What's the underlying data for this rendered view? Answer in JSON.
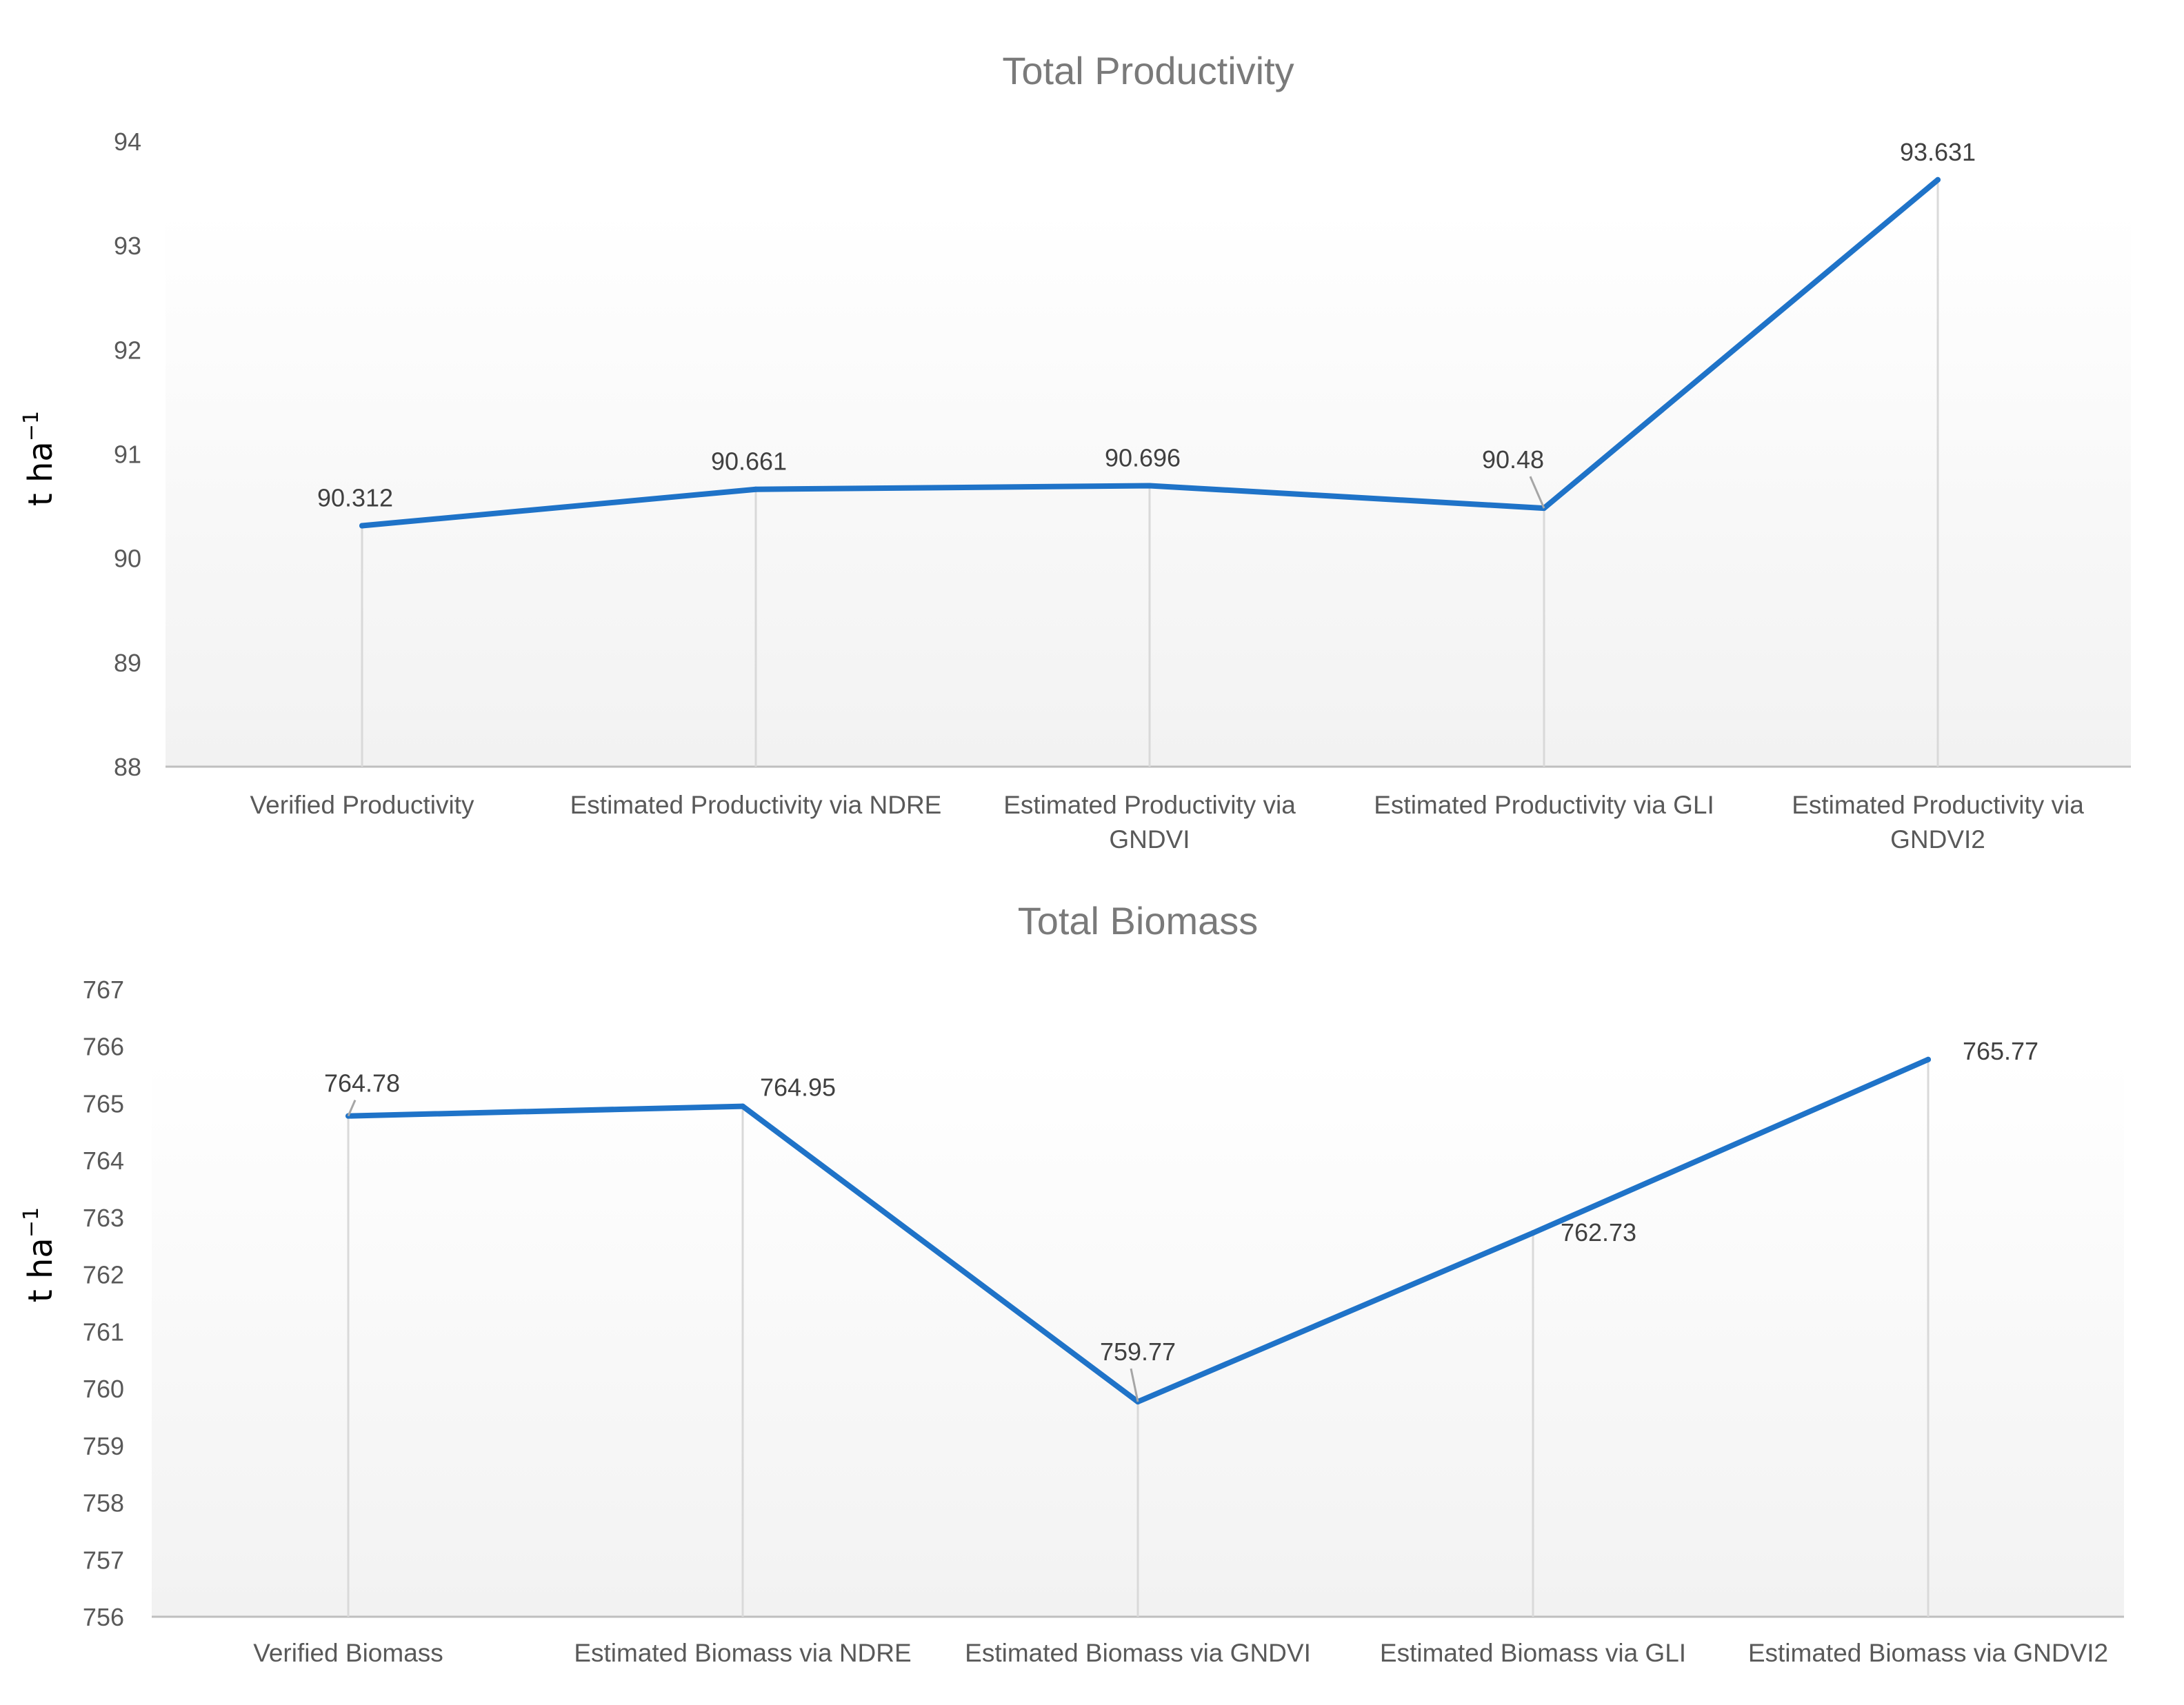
{
  "colors": {
    "line": "#1f73c8",
    "dropline": "#d9d9d9",
    "axis": "#bfbfbf",
    "plot_bg_top": "#ffffff",
    "plot_bg_bottom": "#f2f2f2"
  },
  "chart_data": [
    {
      "type": "line",
      "title": "Total Productivity",
      "ylabel": "t ha",
      "ylabel_superscript": "−1",
      "ylim": [
        88,
        94
      ],
      "yticks": [
        "88",
        "89",
        "90",
        "91",
        "92",
        "93",
        "94"
      ],
      "categories": [
        [
          "Verified Productivity"
        ],
        [
          "Estimated Productivity via NDRE"
        ],
        [
          "Estimated Productivity via",
          "GNDVI"
        ],
        [
          "Estimated Productivity via GLI"
        ],
        [
          "Estimated Productivity via",
          "GNDVI2"
        ]
      ],
      "values": [
        90.312,
        90.661,
        90.696,
        90.48,
        93.631
      ],
      "data_labels": [
        "90.312",
        "90.661",
        "90.696",
        "90.48",
        "93.631"
      ],
      "grid": false,
      "drop_lines": true
    },
    {
      "type": "line",
      "title": "Total Biomass",
      "ylabel": "t ha",
      "ylabel_superscript": "−1",
      "ylim": [
        756,
        767
      ],
      "yticks": [
        "756",
        "757",
        "758",
        "759",
        "760",
        "761",
        "762",
        "763",
        "764",
        "765",
        "766",
        "767"
      ],
      "categories": [
        [
          "Verified Biomass"
        ],
        [
          "Estimated Biomass via NDRE"
        ],
        [
          "Estimated Biomass via GNDVI"
        ],
        [
          "Estimated Biomass via GLI"
        ],
        [
          "Estimated Biomass via GNDVI2"
        ]
      ],
      "values": [
        764.78,
        764.95,
        759.77,
        762.73,
        765.77
      ],
      "data_labels": [
        "764.78",
        "764.95",
        "759.77",
        "762.73",
        "765.77"
      ],
      "grid": false,
      "drop_lines": true
    }
  ]
}
